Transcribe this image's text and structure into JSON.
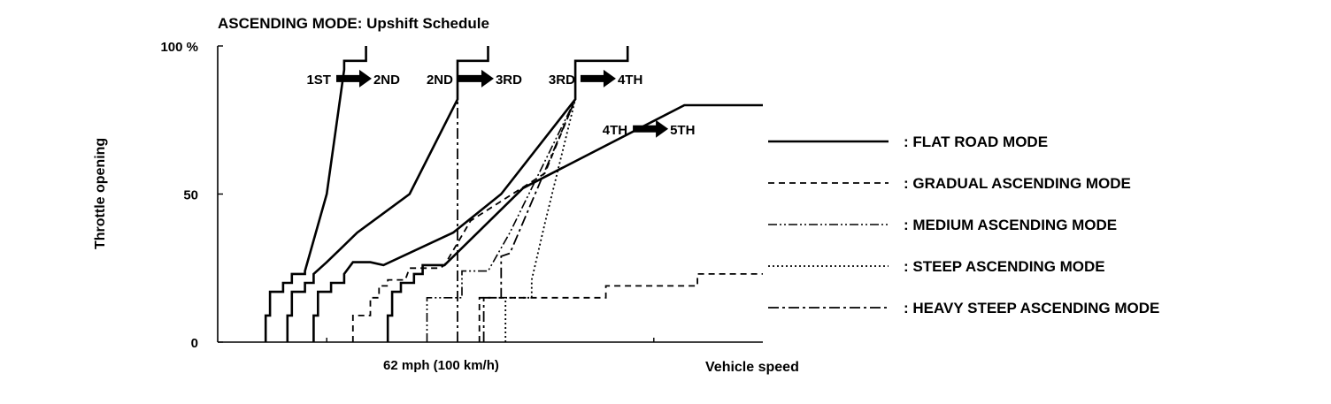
{
  "chart_data": {
    "type": "line",
    "title": "ASCENDING MODE: Upshift Schedule",
    "xlabel": "Vehicle speed",
    "ylabel": "Throttle opening",
    "x_reference_label": "62 mph (100 km/h)",
    "y_ticks": [
      {
        "value": 0,
        "label": "0"
      },
      {
        "value": 50,
        "label": "50"
      },
      {
        "value": 100,
        "label": "100 %"
      }
    ],
    "xlim": [
      0,
      125
    ],
    "ylim": [
      0,
      100
    ],
    "shift_annotations": [
      {
        "from": "1ST",
        "to": "2ND",
        "x": 28,
        "y": 89
      },
      {
        "from": "2ND",
        "to": "3RD",
        "x": 56,
        "y": 89
      },
      {
        "from": "3RD",
        "to": "4TH",
        "x": 84,
        "y": 89
      },
      {
        "from": "4TH",
        "to": "5TH",
        "x": 96,
        "y": 72
      }
    ],
    "legend_position": "right",
    "series": [
      {
        "name": ": FLAT ROAD MODE",
        "style": "solid",
        "segments": [
          [
            [
              11,
              0
            ],
            [
              11,
              9
            ],
            [
              12,
              9
            ],
            [
              12,
              17
            ],
            [
              15,
              17
            ],
            [
              15,
              20
            ],
            [
              17,
              20
            ],
            [
              17,
              23
            ],
            [
              20,
              23
            ],
            [
              20,
              24
            ],
            [
              25,
              50
            ],
            [
              29,
              92
            ],
            [
              29,
              95
            ],
            [
              34,
              95
            ],
            [
              34,
              100
            ]
          ],
          [
            [
              16,
              0
            ],
            [
              16,
              9
            ],
            [
              17,
              9
            ],
            [
              17,
              17
            ],
            [
              20,
              17
            ],
            [
              20,
              20
            ],
            [
              22,
              20
            ],
            [
              22,
              23
            ],
            [
              25,
              27
            ],
            [
              32,
              37
            ],
            [
              44,
              50
            ],
            [
              55,
              82
            ],
            [
              55,
              95
            ],
            [
              62,
              95
            ],
            [
              62,
              100
            ]
          ],
          [
            [
              22,
              0
            ],
            [
              22,
              9
            ],
            [
              23,
              9
            ],
            [
              23,
              17
            ],
            [
              26,
              17
            ],
            [
              26,
              20
            ],
            [
              29,
              20
            ],
            [
              29,
              23
            ],
            [
              31,
              27
            ],
            [
              35,
              27
            ],
            [
              38,
              26
            ],
            [
              54,
              37
            ],
            [
              65,
              50
            ],
            [
              82,
              82
            ],
            [
              82,
              95
            ],
            [
              94,
              95
            ],
            [
              94,
              100
            ]
          ],
          [
            [
              39,
              0
            ],
            [
              39,
              9
            ],
            [
              40,
              9
            ],
            [
              40,
              17
            ],
            [
              42,
              17
            ],
            [
              42,
              20
            ],
            [
              45,
              20
            ],
            [
              45,
              23
            ],
            [
              47,
              23
            ],
            [
              47,
              26
            ],
            [
              52,
              26
            ],
            [
              70,
              52
            ],
            [
              107,
              80
            ],
            [
              125,
              80
            ]
          ]
        ]
      },
      {
        "name": ": GRADUAL ASCENDING MODE",
        "style": "dashed",
        "segments": [
          [
            [
              31,
              0
            ],
            [
              31,
              9
            ],
            [
              35,
              9
            ],
            [
              35,
              15
            ],
            [
              37,
              15
            ],
            [
              37,
              19
            ],
            [
              39,
              19
            ],
            [
              39,
              21
            ],
            [
              43,
              21
            ],
            [
              44,
              25
            ],
            [
              51,
              25
            ],
            [
              52,
              26
            ],
            [
              58,
              41
            ],
            [
              75,
              57
            ],
            [
              82,
              82
            ]
          ],
          [
            [
              60,
              0
            ],
            [
              60,
              15
            ],
            [
              89,
              15
            ],
            [
              89,
              19
            ],
            [
              110,
              19
            ],
            [
              110,
              23
            ],
            [
              125,
              23
            ]
          ]
        ]
      },
      {
        "name": ": MEDIUM ASCENDING MODE",
        "style": "dash-dot-dot",
        "segments": [
          [
            [
              48,
              0
            ],
            [
              48,
              15
            ],
            [
              56,
              15
            ],
            [
              56,
              24
            ],
            [
              62,
              24
            ],
            [
              67,
              37
            ],
            [
              82,
              82
            ]
          ]
        ]
      },
      {
        "name": ": STEEP ASCENDING MODE",
        "style": "dotted",
        "segments": [
          [
            [
              66,
              0
            ],
            [
              66,
              15
            ],
            [
              72,
              15
            ],
            [
              72,
              21
            ],
            [
              75,
              40
            ],
            [
              82,
              82
            ]
          ]
        ]
      },
      {
        "name": ": HEAVY STEEP ASCENDING MODE",
        "style": "dash-dot",
        "segments": [
          [
            [
              55,
              0
            ],
            [
              55,
              82
            ]
          ],
          [
            [
              61,
              0
            ],
            [
              61,
              15
            ],
            [
              65,
              15
            ],
            [
              65,
              29
            ],
            [
              67,
              30
            ],
            [
              82,
              82
            ]
          ]
        ]
      }
    ]
  }
}
